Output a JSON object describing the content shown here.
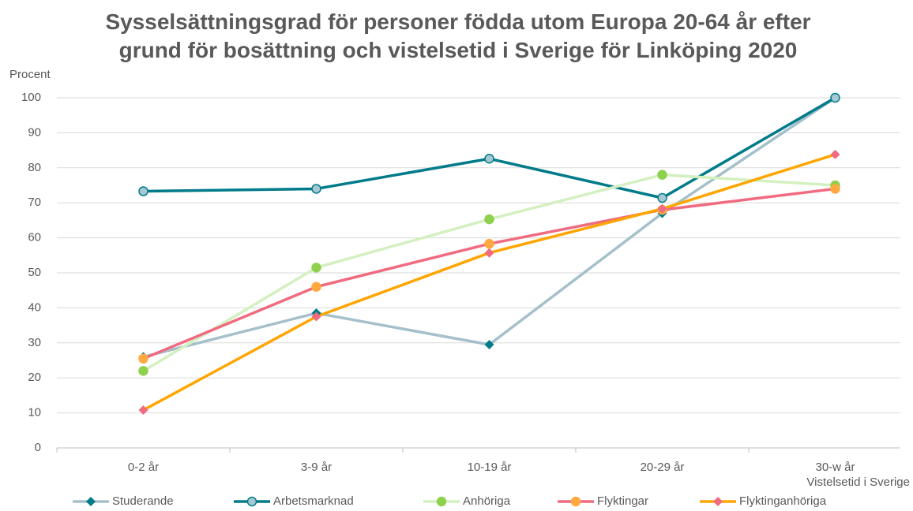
{
  "chart_data": {
    "type": "line",
    "title": "Sysselsättningsgrad för personer födda utom Europa 20-64 år efter grund för bosättning och vistelsetid i Sverige för Linköping 2020",
    "y_label": "Procent",
    "x_label": "Vistelsetid i Sverige",
    "categories": [
      "0-2 år",
      "3-9 år",
      "10-19 år",
      "20-29 år",
      "30-w år"
    ],
    "series": [
      {
        "name": "Studerande",
        "color": "#a5c0ca",
        "marker": "diamond",
        "marker_color": "#007b8a",
        "values": [
          26,
          38.5,
          29.5,
          67,
          100
        ]
      },
      {
        "name": "Arbetsmarknad",
        "color": "#007b8a",
        "marker": "circle",
        "marker_color": "#a5c8d2",
        "values": [
          73.3,
          74,
          82.6,
          71.4,
          100
        ]
      },
      {
        "name": "Anhöriga",
        "color": "#d3f0c0",
        "marker": "circle",
        "marker_color": "#8fd14f",
        "values": [
          22,
          51.5,
          65.3,
          78,
          75
        ]
      },
      {
        "name": "Flyktingar",
        "color": "#f06b80",
        "marker": "circle",
        "marker_color": "#ffa940",
        "values": [
          25.5,
          46,
          58.3,
          68,
          74
        ]
      },
      {
        "name": "Flyktinganhöriga",
        "color": "#ffa500",
        "marker": "diamond",
        "marker_color": "#f06b80",
        "values": [
          10.8,
          37.5,
          55.7,
          68.3,
          83.8
        ]
      }
    ],
    "ylim": [
      0,
      100
    ],
    "yticks": [
      0,
      10,
      20,
      30,
      40,
      50,
      60,
      70,
      80,
      90,
      100
    ],
    "grid": true,
    "legend": "bottom"
  }
}
